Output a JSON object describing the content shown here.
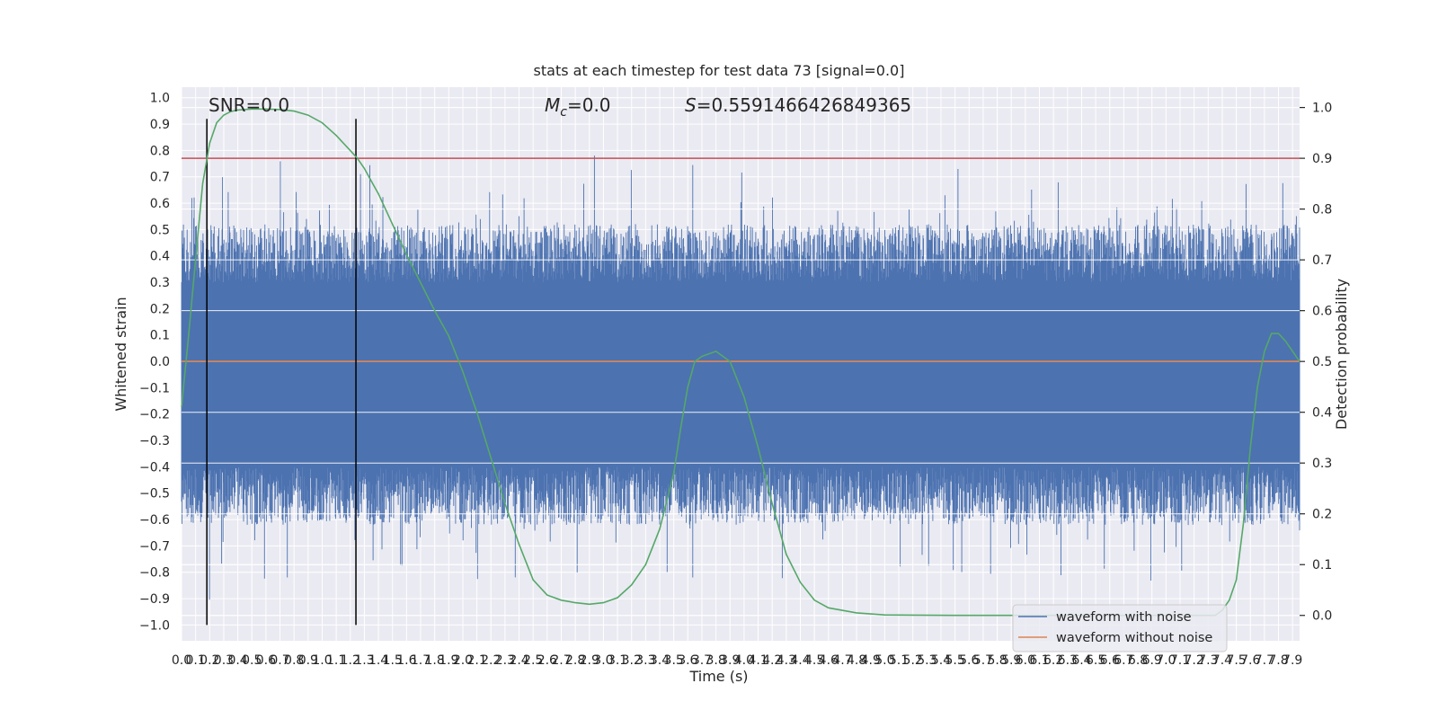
{
  "chart_data": {
    "type": "line",
    "title": "stats at each timestep for test data 73 [signal=0.0]",
    "xlabel": "Time (s)",
    "ylabel_left": "Whitened strain",
    "ylabel_right": "Detection probability",
    "xlim": [
      0.0,
      7.95
    ],
    "ylim_left": [
      -1.06,
      1.04
    ],
    "ylim_right": [
      -0.05,
      1.04
    ],
    "grid": true,
    "legend_position": "lower-right",
    "annotations": {
      "snr": "SNR=0.0",
      "mc_symbol": "M",
      "mc_subscript": "c",
      "mc_value": "=0.0",
      "s_symbol": "S",
      "s_value": "=0.5591466426849365"
    },
    "x_tick_labels": [
      "0.0",
      "0.1",
      "0.2",
      "0.3",
      "0.4",
      "0.5",
      "0.6",
      "0.7",
      "0.8",
      "0.9",
      "1.0",
      "1.1",
      "1.2",
      "1.3",
      "1.4",
      "1.5",
      "1.6",
      "1.7",
      "1.8",
      "1.9",
      "2.0",
      "2.1",
      "2.2",
      "2.3",
      "2.4",
      "2.5",
      "2.6",
      "2.7",
      "2.8",
      "2.9",
      "3.0",
      "3.1",
      "3.2",
      "3.3",
      "3.4",
      "3.5",
      "3.6",
      "3.7",
      "3.8",
      "3.9",
      "4.0",
      "4.1",
      "4.2",
      "4.3",
      "4.4",
      "4.5",
      "4.6",
      "4.7",
      "4.8",
      "4.9",
      "5.0",
      "5.1",
      "5.2",
      "5.3",
      "5.4",
      "5.5",
      "5.6",
      "5.7",
      "5.8",
      "5.9",
      "6.0",
      "6.1",
      "6.2",
      "6.3",
      "6.4",
      "6.5",
      "6.6",
      "6.7",
      "6.8",
      "6.9",
      "7.0",
      "7.1",
      "7.2",
      "7.3",
      "7.4",
      "7.5",
      "7.6",
      "7.7",
      "7.8",
      "7.9"
    ],
    "y_tick_labels_left": [
      "−1.0",
      "−0.9",
      "−0.8",
      "−0.7",
      "−0.6",
      "−0.5",
      "−0.4",
      "−0.3",
      "−0.2",
      "−0.1",
      "0.0",
      "0.1",
      "0.2",
      "0.3",
      "0.4",
      "0.5",
      "0.6",
      "0.7",
      "0.8",
      "0.9",
      "1.0"
    ],
    "y_tick_labels_right": [
      "0.0",
      "0.1",
      "0.2",
      "0.3",
      "0.4",
      "0.5",
      "0.6",
      "0.7",
      "0.8",
      "0.9",
      "1.0"
    ],
    "threshold_probability": 0.9,
    "vertical_markers_x": [
      0.18,
      1.24
    ],
    "series": [
      {
        "name": "waveform with noise",
        "color": "#4c72b0",
        "axis": "left",
        "envelope_high": 0.3,
        "envelope_low": -0.4
      },
      {
        "name": "waveform without noise",
        "color": "#dd8452",
        "axis": "left",
        "constant": 0.0
      },
      {
        "color": "#55a868",
        "axis": "right",
        "x": [
          0.0,
          0.05,
          0.1,
          0.15,
          0.2,
          0.25,
          0.3,
          0.35,
          0.4,
          0.5,
          0.6,
          0.7,
          0.8,
          0.9,
          1.0,
          1.1,
          1.2,
          1.25,
          1.3,
          1.35,
          1.4,
          1.5,
          1.6,
          1.7,
          1.8,
          1.9,
          2.0,
          2.1,
          2.2,
          2.3,
          2.4,
          2.5,
          2.6,
          2.7,
          2.8,
          2.9,
          3.0,
          3.1,
          3.2,
          3.3,
          3.4,
          3.5,
          3.55,
          3.6,
          3.65,
          3.7,
          3.8,
          3.9,
          4.0,
          4.1,
          4.2,
          4.3,
          4.4,
          4.5,
          4.6,
          4.8,
          5.0,
          5.5,
          6.0,
          6.5,
          7.0,
          7.3,
          7.35,
          7.4,
          7.45,
          7.5,
          7.55,
          7.6,
          7.65,
          7.7,
          7.75,
          7.8,
          7.85,
          7.9,
          7.95
        ],
        "y": [
          0.41,
          0.55,
          0.7,
          0.85,
          0.93,
          0.97,
          0.985,
          0.992,
          0.995,
          0.997,
          0.997,
          0.996,
          0.993,
          0.985,
          0.97,
          0.945,
          0.915,
          0.9,
          0.88,
          0.855,
          0.83,
          0.77,
          0.71,
          0.655,
          0.6,
          0.55,
          0.48,
          0.4,
          0.31,
          0.22,
          0.14,
          0.07,
          0.04,
          0.03,
          0.025,
          0.022,
          0.025,
          0.035,
          0.06,
          0.1,
          0.17,
          0.28,
          0.37,
          0.45,
          0.5,
          0.51,
          0.52,
          0.5,
          0.43,
          0.33,
          0.22,
          0.12,
          0.065,
          0.03,
          0.015,
          0.005,
          0.001,
          0.0,
          0.0,
          0.0,
          0.0,
          0.0,
          0.0,
          0.01,
          0.03,
          0.07,
          0.18,
          0.33,
          0.45,
          0.52,
          0.555,
          0.555,
          0.54,
          0.52,
          0.5
        ]
      }
    ]
  }
}
